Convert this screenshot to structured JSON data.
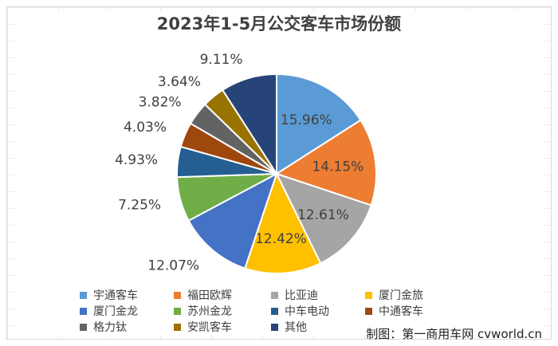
{
  "chart_data": {
    "type": "pie",
    "title": "2023年1-5月公交客车市场份额",
    "slices": [
      {
        "name": "宇通客车",
        "value": 15.96,
        "label": "15.96%",
        "color": "#5B9BD5"
      },
      {
        "name": "福田欧辉",
        "value": 14.15,
        "label": "14.15%",
        "color": "#ED7D31"
      },
      {
        "name": "比亚迪",
        "value": 12.61,
        "label": "12.61%",
        "color": "#A5A5A5"
      },
      {
        "name": "厦门金旅",
        "value": 12.42,
        "label": "12.42%",
        "color": "#FFC000"
      },
      {
        "name": "厦门金龙",
        "value": 12.07,
        "label": "12.07%",
        "color": "#4472C4"
      },
      {
        "name": "苏州金龙",
        "value": 7.25,
        "label": "7.25%",
        "color": "#70AD47"
      },
      {
        "name": "中车电动",
        "value": 4.93,
        "label": "4.93%",
        "color": "#255E91"
      },
      {
        "name": "中通客车",
        "value": 4.03,
        "label": "4.03%",
        "color": "#9E480E"
      },
      {
        "name": "格力钛",
        "value": 3.82,
        "label": "3.82%",
        "color": "#636363"
      },
      {
        "name": "安凯客车",
        "value": 3.64,
        "label": "3.64%",
        "color": "#997300"
      },
      {
        "name": "其他",
        "value": 9.11,
        "label": "9.11%",
        "color": "#264478"
      }
    ],
    "legend_position": "bottom"
  },
  "footer": {
    "credit": "制图：第一商用车网 cvworld.cn"
  }
}
